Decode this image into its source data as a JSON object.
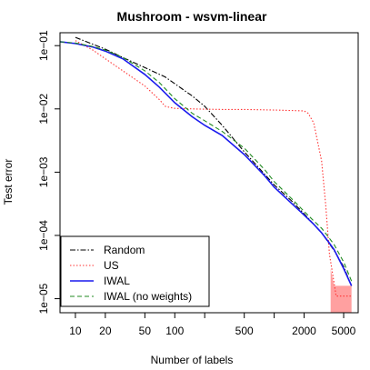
{
  "chart_data": {
    "type": "line",
    "title": "Mushroom - wsvm-linear",
    "xlabel": "Number of labels",
    "ylabel": "Test error",
    "xscale": "log",
    "yscale": "log",
    "xlim": [
      7,
      7000
    ],
    "ylim": [
      6e-06,
      0.16
    ],
    "x_ticks": [
      10,
      20,
      50,
      100,
      500,
      2000,
      5000
    ],
    "x_tick_labels": [
      "10",
      "20",
      "50",
      "100",
      "500",
      "2000",
      "5000"
    ],
    "x_minor_ticks": [
      200,
      1000
    ],
    "y_ticks": [
      1e-05,
      0.0001,
      0.001,
      0.01,
      0.1
    ],
    "y_tick_labels": [
      "1e−05",
      "1e−04",
      "1e−03",
      "1e−02",
      "1e−01"
    ],
    "grid": false,
    "legend_position": "bottom-left",
    "series": [
      {
        "name": "Random",
        "color": "#000000",
        "dash": "dashdot",
        "x": [
          10,
          13,
          20,
          30,
          50,
          80,
          100,
          150,
          200,
          300,
          500,
          800,
          1000,
          1500,
          2000,
          3000,
          4000,
          5000,
          6000
        ],
        "y": [
          0.135,
          0.115,
          0.088,
          0.065,
          0.045,
          0.032,
          0.025,
          0.016,
          0.011,
          0.0055,
          0.0021,
          0.00093,
          0.00063,
          0.00035,
          0.00022,
          0.00011,
          5.8e-05,
          3.2e-05,
          1.6e-05
        ]
      },
      {
        "name": "US",
        "color": "#ff3333",
        "dash": "dotted",
        "x": [
          10,
          15,
          20,
          30,
          50,
          70,
          80,
          90,
          100,
          150,
          200,
          300,
          500,
          1000,
          2000,
          2200,
          2500,
          3000,
          3300,
          3600,
          4000,
          4200,
          5000,
          6000
        ],
        "y": [
          0.12,
          0.085,
          0.062,
          0.04,
          0.023,
          0.014,
          0.011,
          0.0105,
          0.0102,
          0.01,
          0.0099,
          0.0098,
          0.0098,
          0.0096,
          0.0093,
          0.0085,
          0.006,
          0.0015,
          0.0003,
          5e-05,
          1.8e-05,
          1.1e-05,
          1.1e-05,
          1.1e-05
        ]
      },
      {
        "name": "IWAL",
        "color": "#1a1aee",
        "dash": "solid",
        "x": [
          7,
          10,
          15,
          20,
          30,
          50,
          70,
          100,
          150,
          200,
          300,
          500,
          800,
          1000,
          1500,
          2000,
          2500,
          3000,
          3500,
          4000,
          5000,
          6000
        ],
        "y": [
          0.115,
          0.108,
          0.095,
          0.082,
          0.062,
          0.035,
          0.022,
          0.0125,
          0.0075,
          0.0055,
          0.0038,
          0.0019,
          0.00088,
          0.00058,
          0.00032,
          0.00021,
          0.00015,
          0.00011,
          8e-05,
          6e-05,
          3e-05,
          1.6e-05
        ]
      },
      {
        "name": "IWAL (no weights)",
        "color": "#228b22",
        "dash": "dashed",
        "x": [
          7,
          10,
          15,
          20,
          30,
          50,
          70,
          100,
          150,
          200,
          300,
          500,
          800,
          1000,
          1500,
          2000,
          2500,
          3000,
          3500,
          4000,
          5000,
          6000
        ],
        "y": [
          0.115,
          0.11,
          0.097,
          0.085,
          0.065,
          0.04,
          0.026,
          0.0145,
          0.0085,
          0.0065,
          0.0044,
          0.0024,
          0.0011,
          0.00071,
          0.00038,
          0.00024,
          0.00017,
          0.00013,
          9.5e-05,
          7.2e-05,
          3.8e-05,
          1.9e-05
        ]
      }
    ],
    "bands": [
      {
        "series": "US",
        "color": "#ff8888",
        "x": [
          3700,
          4000,
          4300,
          5000,
          6000
        ],
        "lower": [
          6e-06,
          6e-06,
          6e-06,
          6e-06,
          6e-06
        ],
        "upper": [
          3e-05,
          1.6e-05,
          1.6e-05,
          1.6e-05,
          1.6e-05
        ]
      }
    ]
  }
}
